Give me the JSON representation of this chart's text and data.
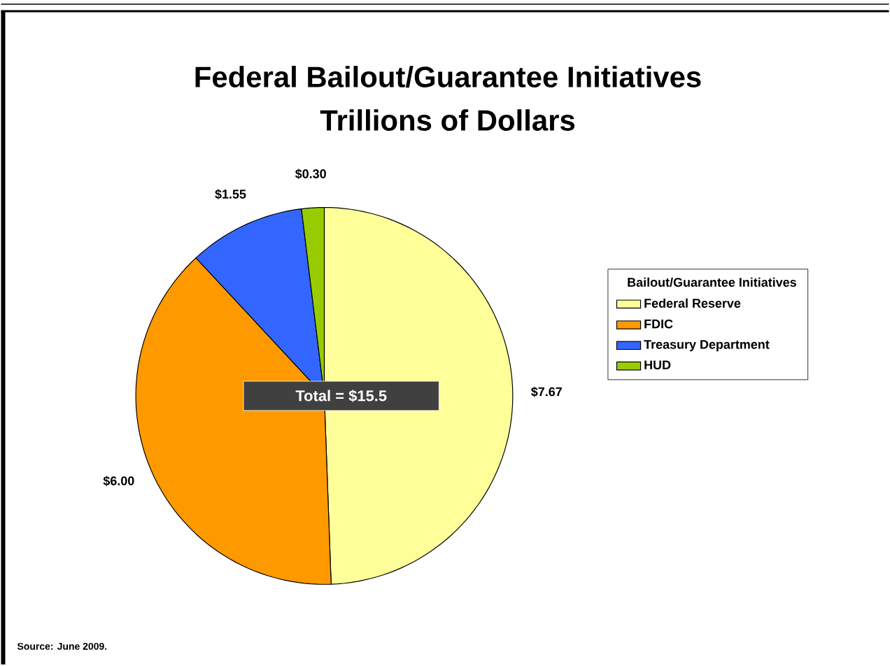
{
  "chart_data": {
    "type": "pie",
    "title": "Federal Bailout/Guarantee Initiatives",
    "subtitle": "Trillions of Dollars",
    "categories": [
      "Federal Reserve",
      "FDIC",
      "Treasury Department",
      "HUD"
    ],
    "values": [
      7.67,
      6.0,
      1.55,
      0.3
    ],
    "value_labels": [
      "$7.67",
      "$6.00",
      "$1.55",
      "$0.30"
    ],
    "colors": [
      "#ffff99",
      "#ff9900",
      "#3366ff",
      "#99cc00"
    ],
    "legend": "right",
    "legend_title": "Bailout/Guarantee Initiatives",
    "annotations": [
      "Total = $15.5",
      "Source: June 2009."
    ]
  }
}
